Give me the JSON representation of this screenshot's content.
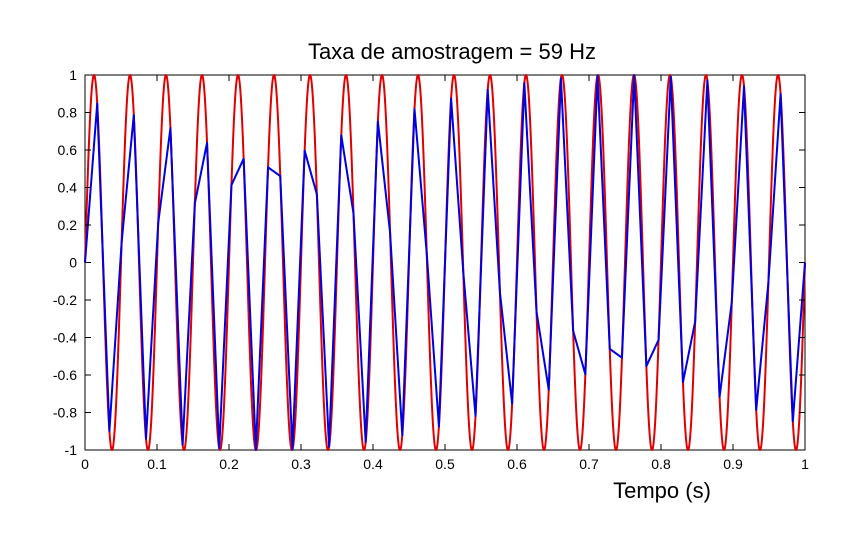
{
  "chart_data": {
    "type": "line",
    "title": "Taxa de amostragem = 59 Hz",
    "xlabel": "Tempo (s)",
    "ylabel": "",
    "xlim": [
      0,
      1
    ],
    "ylim": [
      -1,
      1
    ],
    "x_ticks": [
      "0",
      "0.1",
      "0.2",
      "0.3",
      "0.4",
      "0.5",
      "0.6",
      "0.7",
      "0.8",
      "0.9",
      "1"
    ],
    "y_ticks": [
      "1",
      "0.8",
      "0.6",
      "0.4",
      "0.2",
      "0",
      "-0.2",
      "-0.4",
      "-0.6",
      "-0.8",
      "-1"
    ],
    "grid": false,
    "series": [
      {
        "color": "#e00000",
        "frequency_hz": 20,
        "amplitude": 1,
        "style": "continuous"
      },
      {
        "color": "#0000e0",
        "frequency_hz": 20,
        "sampling_rate_hz": 59,
        "amplitude": 1,
        "style": "sampled"
      }
    ]
  }
}
